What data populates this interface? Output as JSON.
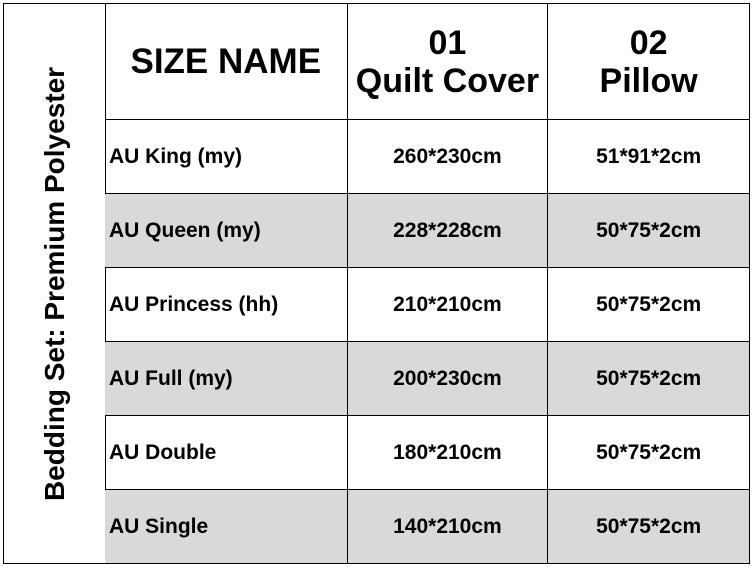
{
  "side_label": "Bedding Set: Premium Polyester",
  "headers": [
    {
      "line1": "SIZE NAME",
      "line2": ""
    },
    {
      "line1": "01",
      "line2": "Quilt Cover"
    },
    {
      "line1": "02",
      "line2": "Pillow"
    }
  ],
  "rows": [
    {
      "name": "AU King (my)",
      "quilt": "260*230cm",
      "pillow": "51*91*2cm"
    },
    {
      "name": "AU Queen (my)",
      "quilt": "228*228cm",
      "pillow": "50*75*2cm"
    },
    {
      "name": "AU Princess (hh)",
      "quilt": "210*210cm",
      "pillow": "50*75*2cm"
    },
    {
      "name": "AU Full (my)",
      "quilt": "200*230cm",
      "pillow": "50*75*2cm"
    },
    {
      "name": "AU Double",
      "quilt": "180*210cm",
      "pillow": "50*75*2cm"
    },
    {
      "name": "AU Single",
      "quilt": "140*210cm",
      "pillow": "50*75*2cm"
    }
  ],
  "colors": {
    "alt_row": "#d9d9d9",
    "border": "#000000"
  }
}
